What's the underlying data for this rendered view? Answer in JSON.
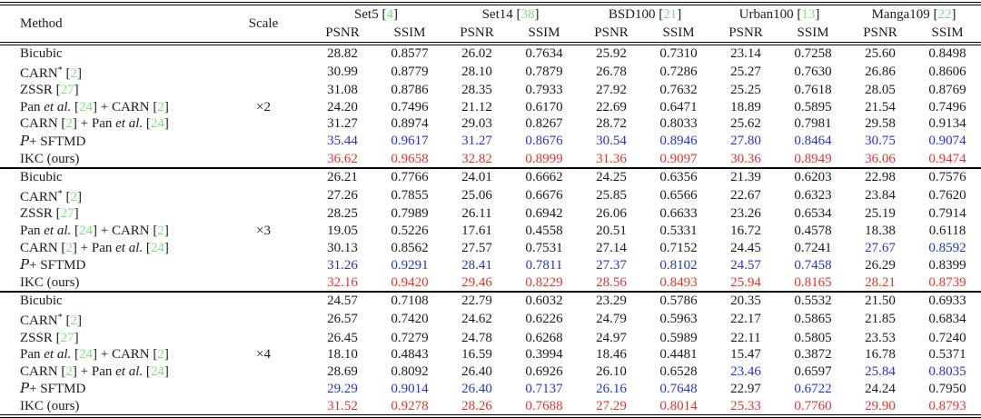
{
  "table": {
    "header": {
      "method_label": "Method",
      "scale_label": "Scale",
      "datasets": [
        {
          "name": "Set5",
          "cite": "4"
        },
        {
          "name": "Set14",
          "cite": "38"
        },
        {
          "name": "BSD100",
          "cite": "21"
        },
        {
          "name": "Urban100",
          "cite": "13"
        },
        {
          "name": "Manga109",
          "cite": "22"
        }
      ],
      "metrics": [
        "PSNR",
        "SSIM"
      ]
    },
    "colors": {
      "black": "#1b1b1b",
      "blue": "#2433cc",
      "red": "#e0352b",
      "cite_green": "#7be47b"
    },
    "blocks": [
      {
        "scale": "×2",
        "scale_row_index": 3,
        "rows": [
          {
            "method": [
              [
                "Bicubic"
              ]
            ],
            "values": [
              "28.82",
              "0.8577",
              "26.02",
              "0.7634",
              "25.92",
              "0.7310",
              "23.14",
              "0.7258",
              "25.60",
              "0.8498"
            ],
            "colors": "kkkkkkkkkk"
          },
          {
            "method": [
              [
                "CARN"
              ],
              [
                "*",
                "sup"
              ],
              [
                " [",
                "plain"
              ],
              [
                "2",
                "cite"
              ],
              [
                "]",
                "plain"
              ]
            ],
            "values": [
              "30.99",
              "0.8779",
              "28.10",
              "0.7879",
              "26.78",
              "0.7286",
              "25.27",
              "0.7630",
              "26.86",
              "0.8606"
            ],
            "colors": "kkkkkkkkkk"
          },
          {
            "method": [
              [
                "ZSSR ["
              ],
              [
                "27",
                "cite"
              ],
              [
                "]",
                "plain"
              ]
            ],
            "values": [
              "31.08",
              "0.8786",
              "28.35",
              "0.7933",
              "27.92",
              "0.7632",
              "25.25",
              "0.7618",
              "28.05",
              "0.8769"
            ],
            "colors": "kkkkkkkkkk"
          },
          {
            "method": [
              [
                "Pan "
              ],
              [
                "et al.",
                "italic"
              ],
              [
                " [",
                "plain"
              ],
              [
                "24",
                "cite"
              ],
              [
                "] + CARN [",
                "plain"
              ],
              [
                "2",
                "cite"
              ],
              [
                "]",
                "plain"
              ]
            ],
            "values": [
              "24.20",
              "0.7496",
              "21.12",
              "0.6170",
              "22.69",
              "0.6471",
              "18.89",
              "0.5895",
              "21.54",
              "0.7496"
            ],
            "colors": "kkkkkkkkkk"
          },
          {
            "method": [
              [
                "CARN ["
              ],
              [
                "2",
                "cite"
              ],
              [
                "] + Pan ",
                "plain"
              ],
              [
                "et al.",
                "italic"
              ],
              [
                " [",
                "plain"
              ],
              [
                "24",
                "cite"
              ],
              [
                "]",
                "plain"
              ]
            ],
            "values": [
              "31.27",
              "0.8974",
              "29.03",
              "0.8267",
              "28.72",
              "0.8033",
              "25.62",
              "0.7981",
              "29.58",
              "0.9134"
            ],
            "colors": "kkkkkkkkkk"
          },
          {
            "method": [
              [
                "P",
                "script"
              ],
              [
                "+ SFTMD",
                "plain"
              ]
            ],
            "values": [
              "35.44",
              "0.9617",
              "31.27",
              "0.8676",
              "30.54",
              "0.8946",
              "27.80",
              "0.8464",
              "30.75",
              "0.9074"
            ],
            "colors": "bbbbbbbbbb"
          },
          {
            "method": [
              [
                "IKC (ours)"
              ]
            ],
            "values": [
              "36.62",
              "0.9658",
              "32.82",
              "0.8999",
              "31.36",
              "0.9097",
              "30.36",
              "0.8949",
              "36.06",
              "0.9474"
            ],
            "colors": "rrrrrrrrrr"
          }
        ]
      },
      {
        "scale": "×3",
        "scale_row_index": 3,
        "rows": [
          {
            "method": [
              [
                "Bicubic"
              ]
            ],
            "values": [
              "26.21",
              "0.7766",
              "24.01",
              "0.6662",
              "24.25",
              "0.6356",
              "21.39",
              "0.6203",
              "22.98",
              "0.7576"
            ],
            "colors": "kkkkkkkkkk"
          },
          {
            "method": [
              [
                "CARN"
              ],
              [
                "*",
                "sup"
              ],
              [
                " [",
                "plain"
              ],
              [
                "2",
                "cite"
              ],
              [
                "]",
                "plain"
              ]
            ],
            "values": [
              "27.26",
              "0.7855",
              "25.06",
              "0.6676",
              "25.85",
              "0.6566",
              "22.67",
              "0.6323",
              "23.84",
              "0.7620"
            ],
            "colors": "kkkkkkkkkk"
          },
          {
            "method": [
              [
                "ZSSR ["
              ],
              [
                "27",
                "cite"
              ],
              [
                "]",
                "plain"
              ]
            ],
            "values": [
              "28.25",
              "0.7989",
              "26.11",
              "0.6942",
              "26.06",
              "0.6633",
              "23.26",
              "0.6534",
              "25.19",
              "0.7914"
            ],
            "colors": "kkkkkkkkkk"
          },
          {
            "method": [
              [
                "Pan "
              ],
              [
                "et al.",
                "italic"
              ],
              [
                " [",
                "plain"
              ],
              [
                "24",
                "cite"
              ],
              [
                "] + CARN [",
                "plain"
              ],
              [
                "2",
                "cite"
              ],
              [
                "]",
                "plain"
              ]
            ],
            "values": [
              "19.05",
              "0.5226",
              "17.61",
              "0.4558",
              "20.51",
              "0.5331",
              "16.72",
              "0.4578",
              "18.38",
              "0.6118"
            ],
            "colors": "kkkkkkkkkk"
          },
          {
            "method": [
              [
                "CARN ["
              ],
              [
                "2",
                "cite"
              ],
              [
                "] + Pan ",
                "plain"
              ],
              [
                "et al.",
                "italic"
              ],
              [
                " [",
                "plain"
              ],
              [
                "24",
                "cite"
              ],
              [
                "]",
                "plain"
              ]
            ],
            "values": [
              "30.13",
              "0.8562",
              "27.57",
              "0.7531",
              "27.14",
              "0.7152",
              "24.45",
              "0.7241",
              "27.67",
              "0.8592"
            ],
            "colors": "kkkkkkkkbb"
          },
          {
            "method": [
              [
                "P",
                "script"
              ],
              [
                "+ SFTMD",
                "plain"
              ]
            ],
            "values": [
              "31.26",
              "0.9291",
              "28.41",
              "0.7811",
              "27.37",
              "0.8102",
              "24.57",
              "0.7458",
              "26.29",
              "0.8399"
            ],
            "colors": "bbbbbbbbkk"
          },
          {
            "method": [
              [
                "IKC (ours)"
              ]
            ],
            "values": [
              "32.16",
              "0.9420",
              "29.46",
              "0.8229",
              "28.56",
              "0.8493",
              "25.94",
              "0.8165",
              "28.21",
              "0.8739"
            ],
            "colors": "rrrrrrrrrr"
          }
        ]
      },
      {
        "scale": "×4",
        "scale_row_index": 3,
        "rows": [
          {
            "method": [
              [
                "Bicubic"
              ]
            ],
            "values": [
              "24.57",
              "0.7108",
              "22.79",
              "0.6032",
              "23.29",
              "0.5786",
              "20.35",
              "0.5532",
              "21.50",
              "0.6933"
            ],
            "colors": "kkkkkkkkkk"
          },
          {
            "method": [
              [
                "CARN"
              ],
              [
                "*",
                "sup"
              ],
              [
                " [",
                "plain"
              ],
              [
                "2",
                "cite"
              ],
              [
                "]",
                "plain"
              ]
            ],
            "values": [
              "26.57",
              "0.7420",
              "24.62",
              "0.6226",
              "24.79",
              "0.5963",
              "22.17",
              "0.5865",
              "21.85",
              "0.6834"
            ],
            "colors": "kkkkkkkkkk"
          },
          {
            "method": [
              [
                "ZSSR ["
              ],
              [
                "27",
                "cite"
              ],
              [
                "]",
                "plain"
              ]
            ],
            "values": [
              "26.45",
              "0.7279",
              "24.78",
              "0.6268",
              "24.97",
              "0.5989",
              "22.11",
              "0.5805",
              "23.53",
              "0.7240"
            ],
            "colors": "kkkkkkkkkk"
          },
          {
            "method": [
              [
                "Pan "
              ],
              [
                "et al.",
                "italic"
              ],
              [
                " [",
                "plain"
              ],
              [
                "24",
                "cite"
              ],
              [
                "] + CARN [",
                "plain"
              ],
              [
                "2",
                "cite"
              ],
              [
                "]",
                "plain"
              ]
            ],
            "values": [
              "18.10",
              "0.4843",
              "16.59",
              "0.3994",
              "18.46",
              "0.4481",
              "15.47",
              "0.3872",
              "16.78",
              "0.5371"
            ],
            "colors": "kkkkkkkkkk"
          },
          {
            "method": [
              [
                "CARN ["
              ],
              [
                "2",
                "cite"
              ],
              [
                "] + Pan ",
                "plain"
              ],
              [
                "et al.",
                "italic"
              ],
              [
                " [",
                "plain"
              ],
              [
                "24",
                "cite"
              ],
              [
                "]",
                "plain"
              ]
            ],
            "values": [
              "28.69",
              "0.8092",
              "26.40",
              "0.6926",
              "26.10",
              "0.6528",
              "23.46",
              "0.6597",
              "25.84",
              "0.8035"
            ],
            "colors": "kkkkkkbkbb"
          },
          {
            "method": [
              [
                "P",
                "script"
              ],
              [
                "+ SFTMD",
                "plain"
              ]
            ],
            "values": [
              "29.29",
              "0.9014",
              "26.40",
              "0.7137",
              "26.16",
              "0.7648",
              "22.97",
              "0.6722",
              "24.24",
              "0.7950"
            ],
            "colors": "bbbbbbkbkk"
          },
          {
            "method": [
              [
                "IKC (ours)"
              ]
            ],
            "values": [
              "31.52",
              "0.9278",
              "28.26",
              "0.7688",
              "27.29",
              "0.8014",
              "25.33",
              "0.7760",
              "29.90",
              "0.8793"
            ],
            "colors": "rrrrrrrrrr"
          }
        ]
      }
    ]
  }
}
